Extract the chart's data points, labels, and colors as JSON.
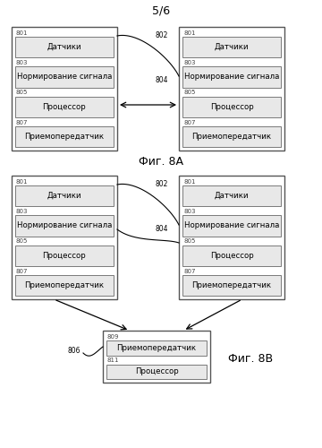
{
  "page_label": "5/6",
  "fig_a_label": "Фиг. 8А",
  "fig_b_label": "Фиг. 8В",
  "bg_color": "#ffffff",
  "box_bg": "#e8e8e8",
  "box_edge": "#666666",
  "outer_edge": "#555555",
  "label_color": "#444444",
  "items_left": [
    {
      "label": "801",
      "text": "Датчики"
    },
    {
      "label": "803",
      "text": "Нормирование сигнала"
    },
    {
      "label": "805",
      "text": "Процессор"
    },
    {
      "label": "807",
      "text": "Приемопередатчик"
    }
  ],
  "items_right": [
    {
      "label": "801",
      "text": "Датчики"
    },
    {
      "label": "803",
      "text": "Нормирование сигнала"
    },
    {
      "label": "805",
      "text": "Процессор"
    },
    {
      "label": "807",
      "text": "Приемопередатчик"
    }
  ],
  "items_bottom": [
    {
      "label": "809",
      "text": "Приемопередатчик"
    },
    {
      "label": "811",
      "text": "Процессор"
    }
  ]
}
